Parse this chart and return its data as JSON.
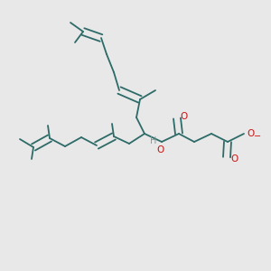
{
  "background_color": "#e8e8e8",
  "bond_color": "#2d6b68",
  "o_color": "#cc1111",
  "h_color": "#7a9a9a",
  "line_width": 1.3,
  "dbo": 0.008,
  "figsize": [
    3.0,
    3.0
  ],
  "dpi": 100,
  "xlim": [
    0,
    300
  ],
  "ylim": [
    0,
    300
  ]
}
